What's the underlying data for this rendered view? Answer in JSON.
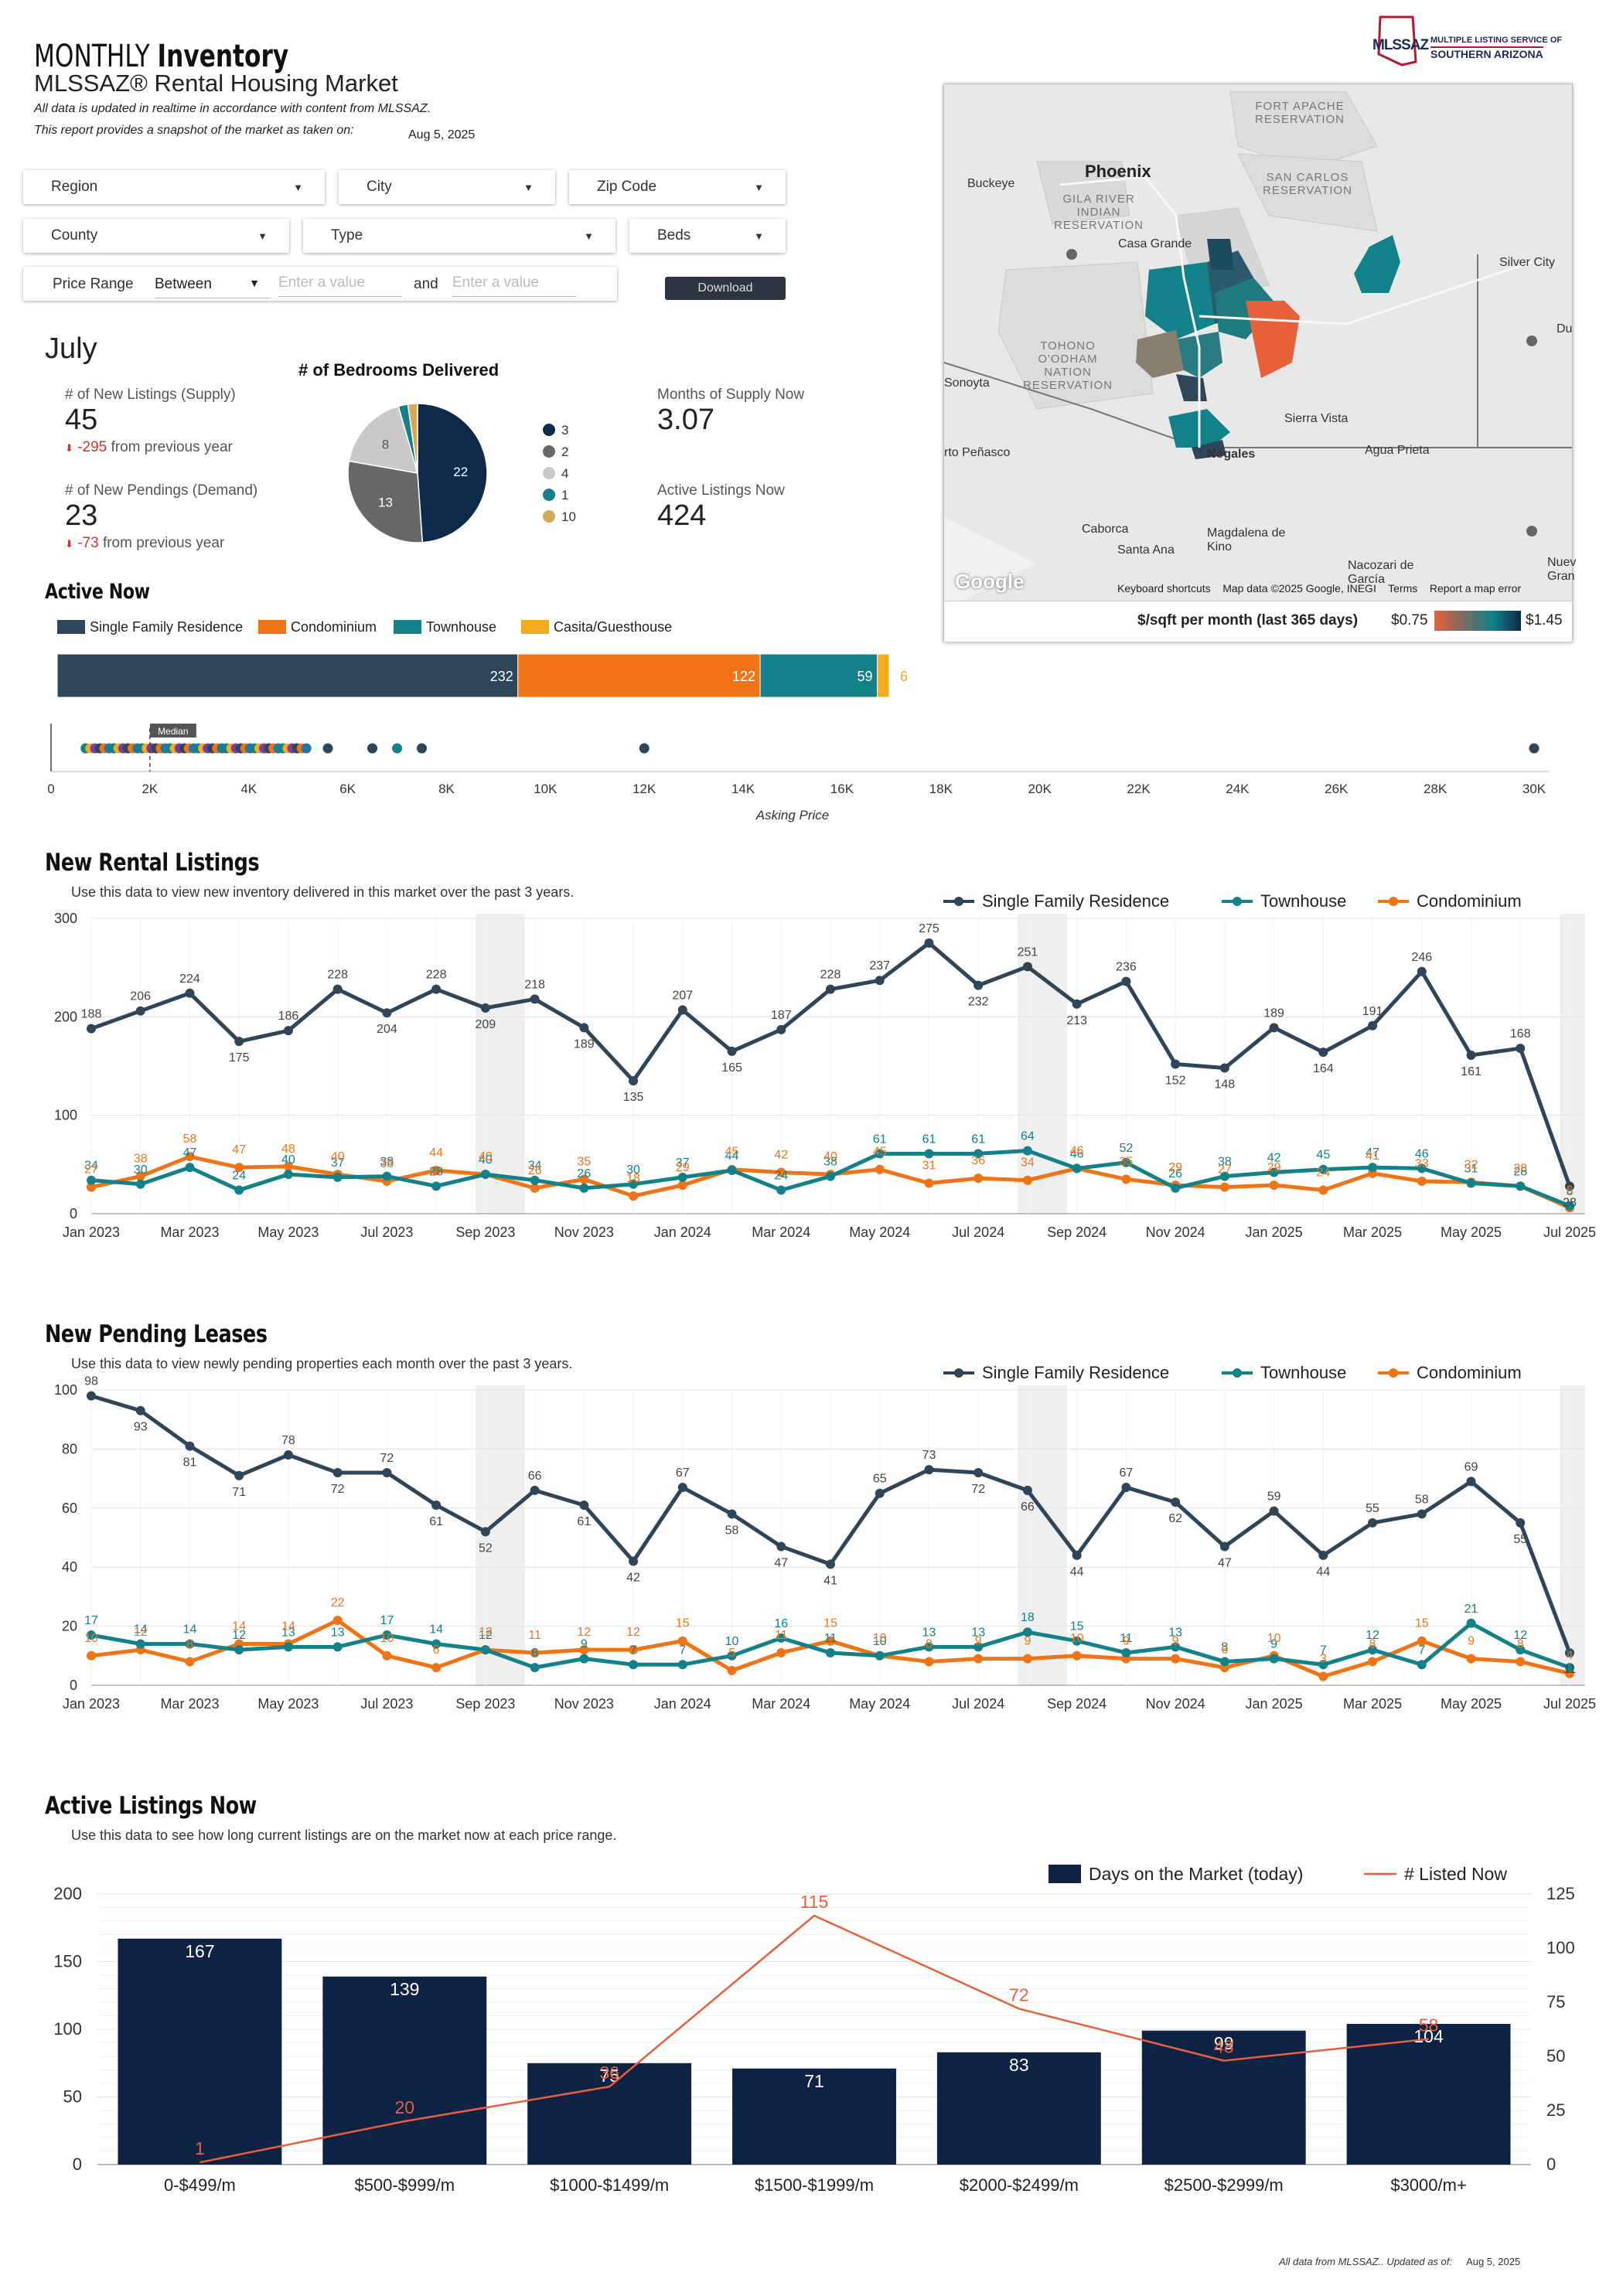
{
  "header": {
    "title_light": "MONTHLY",
    "title_bold": "Inventory",
    "subtitle": "MLSSAZ® Rental Housing Market",
    "note1": "All data is updated in realtime in accordance with content from MLSSAZ.",
    "note2": "This report provides a snapshot of the market as taken on:",
    "snapshot_date": "Aug 5, 2025",
    "logo_abbr": "MLSSAZ",
    "logo_line1": "MULTIPLE LISTING SERVICE OF",
    "logo_line2": "SOUTHERN ARIZONA"
  },
  "filters": {
    "region": "Region",
    "city": "City",
    "zip": "Zip Code",
    "county": "County",
    "type": "Type",
    "beds": "Beds",
    "price_range": "Price Range",
    "between": "Between",
    "placeholder": "Enter a value",
    "and": "and",
    "download": "Download"
  },
  "summary": {
    "month": "July",
    "new_listings_label": "# of New Listings (Supply)",
    "new_listings_value": "45",
    "new_listings_delta": "-295",
    "new_listings_delta_text": "from previous year",
    "new_pendings_label": "# of New Pendings (Demand)",
    "new_pendings_value": "23",
    "new_pendings_delta": "-73",
    "new_pendings_delta_text": "from previous year",
    "supply_label": "Months of Supply Now",
    "supply_value": "3.07",
    "active_label": "Active Listings Now",
    "active_value": "424"
  },
  "map": {
    "legend_label": "$/sqft per month (last 365 days)",
    "legend_min": "$0.75",
    "legend_max": "$1.45",
    "attrib_shortcuts": "Keyboard shortcuts",
    "attrib_data": "Map data ©2025 Google, INEGI",
    "attrib_terms": "Terms",
    "attrib_report": "Report a map error",
    "google": "Google",
    "places": [
      "Phoenix",
      "Buckeye",
      "Casa Grande",
      "Silver City",
      "Sierra Vista",
      "Nogales",
      "Agua Prieta",
      "Caborca",
      "Santa Ana",
      "Magdalena de Kino",
      "Nacozari de García",
      "Sonoyta",
      "rto Peñasco",
      "Du",
      "Nuev Gran"
    ],
    "reservations": [
      "FORT APACHE RESERVATION",
      "SAN CARLOS RESERVATION",
      "GILA RIVER INDIAN RESERVATION",
      "TOHONO O'ODHAM NATION RESERVATION"
    ]
  },
  "active_now": {
    "title": "Active Now",
    "legend": [
      "Single Family Residence",
      "Condominium",
      "Townhouse",
      "Casita/Guesthouse"
    ],
    "colors": [
      "#2f4559",
      "#f07416",
      "#13818a",
      "#f4ac1c"
    ],
    "values": [
      232,
      122,
      59,
      6
    ],
    "median_label": "Median",
    "median_value": 2000,
    "x_axis_label": "Asking Price",
    "x_ticks": [
      "0",
      "2K",
      "4K",
      "6K",
      "8K",
      "10K",
      "12K",
      "14K",
      "16K",
      "18K",
      "20K",
      "22K",
      "24K",
      "26K",
      "28K",
      "30K"
    ],
    "outliers": [
      5600,
      6500,
      7000,
      7500,
      12000,
      30000
    ]
  },
  "chart_data": [
    {
      "type": "pie",
      "title": "# of Bedrooms Delivered",
      "labels": [
        "3",
        "2",
        "4",
        "1",
        "10"
      ],
      "values": [
        22,
        13,
        8,
        1,
        1
      ],
      "colors": [
        "#0d2a4a",
        "#686868",
        "#c9c9c9",
        "#13818a",
        "#d4a95a"
      ]
    },
    {
      "type": "line",
      "title": "New Rental Listings",
      "subtitle": "Use this data to view new inventory delivered in this market over the past 3 years.",
      "x_ticks": [
        "Jan 2023",
        "Mar 2023",
        "May 2023",
        "Jul 2023",
        "Sep 2023",
        "Nov 2023",
        "Jan 2024",
        "Mar 2024",
        "May 2024",
        "Jul 2024",
        "Sep 2024",
        "Nov 2024",
        "Jan 2025",
        "Mar 2025",
        "May 2025",
        "Jul 2025"
      ],
      "ylim": [
        0,
        300
      ],
      "y_ticks": [
        "0",
        "100",
        "200",
        "300"
      ],
      "series": [
        {
          "name": "Single Family Residence",
          "color": "#2f4559",
          "values": [
            188,
            206,
            224,
            175,
            186,
            228,
            204,
            228,
            209,
            218,
            189,
            135,
            207,
            165,
            187,
            228,
            237,
            275,
            232,
            251,
            213,
            236,
            152,
            148,
            189,
            164,
            191,
            246,
            161,
            168,
            28
          ]
        },
        {
          "name": "Townhouse",
          "color": "#13818a",
          "values": [
            34,
            30,
            47,
            24,
            40,
            37,
            38,
            28,
            40,
            34,
            26,
            30,
            37,
            44,
            24,
            38,
            61,
            61,
            61,
            64,
            46,
            52,
            26,
            38,
            42,
            45,
            47,
            46,
            31,
            28,
            8
          ]
        },
        {
          "name": "Condominium",
          "color": "#f07416",
          "values": [
            27,
            38,
            58,
            47,
            48,
            40,
            33,
            44,
            40,
            26,
            35,
            18,
            29,
            45,
            42,
            40,
            45,
            31,
            36,
            34,
            46,
            35,
            29,
            27,
            29,
            24,
            41,
            33,
            32,
            28,
            6
          ]
        }
      ]
    },
    {
      "type": "line",
      "title": "New Pending Leases",
      "subtitle": "Use this data to view newly pending properties each month over the past 3 years.",
      "x_ticks": [
        "Jan 2023",
        "Mar 2023",
        "May 2023",
        "Jul 2023",
        "Sep 2023",
        "Nov 2023",
        "Jan 2024",
        "Mar 2024",
        "May 2024",
        "Jul 2024",
        "Sep 2024",
        "Nov 2024",
        "Jan 2025",
        "Mar 2025",
        "May 2025",
        "Jul 2025"
      ],
      "ylim": [
        0,
        100
      ],
      "y_ticks": [
        "0",
        "20",
        "40",
        "60",
        "80",
        "100"
      ],
      "series": [
        {
          "name": "Single Family Residence",
          "color": "#2f4559",
          "values": [
            98,
            93,
            81,
            71,
            78,
            72,
            72,
            61,
            52,
            66,
            61,
            42,
            67,
            58,
            47,
            41,
            65,
            73,
            72,
            66,
            44,
            67,
            62,
            47,
            59,
            44,
            55,
            58,
            69,
            55,
            11
          ]
        },
        {
          "name": "Townhouse",
          "color": "#13818a",
          "values": [
            17,
            14,
            14,
            12,
            13,
            13,
            17,
            14,
            12,
            6,
            9,
            7,
            7,
            10,
            16,
            11,
            10,
            13,
            13,
            18,
            15,
            11,
            13,
            8,
            9,
            7,
            12,
            7,
            21,
            12,
            6
          ]
        },
        {
          "name": "Condominium",
          "color": "#f07416",
          "values": [
            10,
            12,
            8,
            14,
            14,
            22,
            10,
            6,
            12,
            11,
            12,
            12,
            15,
            5,
            11,
            15,
            10,
            8,
            9,
            9,
            10,
            9,
            9,
            6,
            10,
            3,
            8,
            15,
            9,
            8,
            4
          ]
        }
      ]
    },
    {
      "type": "bar",
      "title": "Active Listings Now",
      "subtitle": "Use this data to see how long current listings are on the market now at each price range.",
      "categories": [
        "0-$499/m",
        "$500-$999/m",
        "$1000-$1499/m",
        "$1500-$1999/m",
        "$2000-$2499/m",
        "$2500-$2999/m",
        "$3000/m+"
      ],
      "series": [
        {
          "name": "Days on the Market (today)",
          "type": "bar",
          "color": "#0e2244",
          "axis": "left",
          "values": [
            167,
            139,
            75,
            71,
            83,
            99,
            104
          ]
        },
        {
          "name": "# Listed Now",
          "type": "line",
          "color": "#e8603a",
          "axis": "right",
          "values": [
            1,
            20,
            36,
            115,
            72,
            48,
            58
          ]
        }
      ],
      "ylim_left": [
        0,
        200
      ],
      "ylim_right": [
        0,
        125
      ],
      "y_ticks_left": [
        "0",
        "50",
        "100",
        "150",
        "200"
      ],
      "y_ticks_right": [
        "0",
        "25",
        "50",
        "75",
        "100",
        "125"
      ]
    }
  ],
  "footer": {
    "text": "All data from MLSSAZ.. Updated as of:",
    "date": "Aug 5, 2025"
  }
}
